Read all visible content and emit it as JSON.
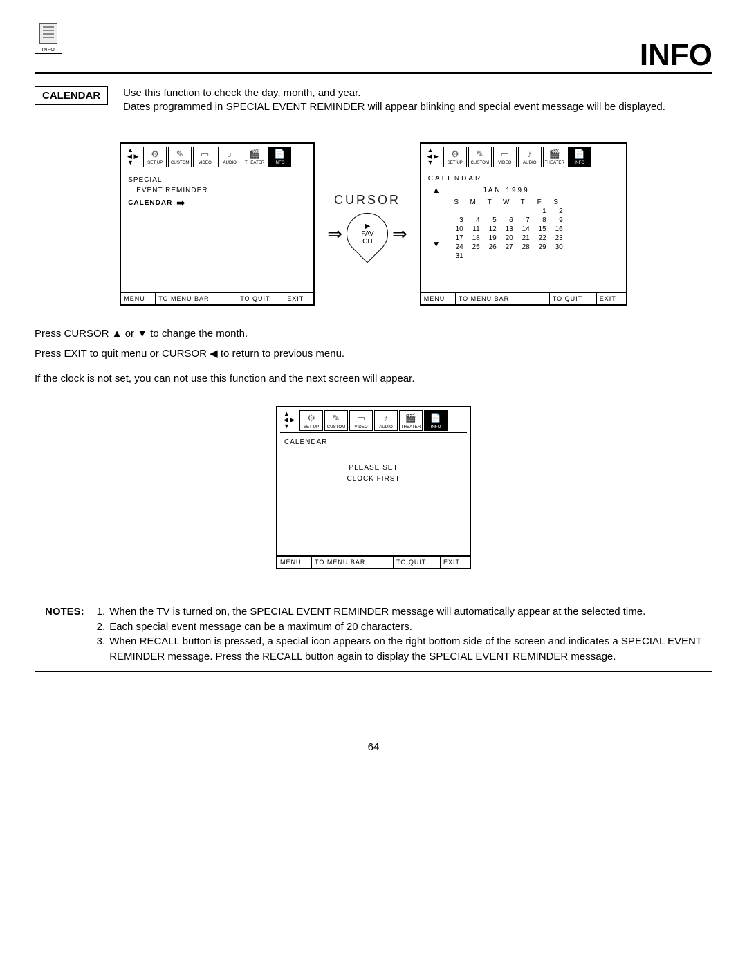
{
  "pageTitle": "INFO",
  "topIconLabel": "INFO",
  "section": {
    "label": "CALENDAR",
    "desc": "Use this function to check the day, month, and year.\nDates programmed in SPECIAL EVENT REMINDER will appear blinking and special event message will be displayed."
  },
  "menuTabs": [
    "SET UP",
    "CUSTOM",
    "VIDEO",
    "AUDIO",
    "THEATER",
    "INFO"
  ],
  "screenLeft": {
    "line1": "SPECIAL",
    "line2": "EVENT REMINDER",
    "selected": "CALENDAR"
  },
  "cursor": {
    "label": "CURSOR",
    "fav": "FAV",
    "ch": "CH"
  },
  "screenRight": {
    "title": "CALENDAR",
    "month": "JAN 1999",
    "dow": [
      "S",
      "M",
      "T",
      "W",
      "T",
      "F",
      "S"
    ],
    "grid": [
      [
        "",
        "",
        "",
        "",
        "",
        "1",
        "2"
      ],
      [
        "3",
        "4",
        "5",
        "6",
        "7",
        "8",
        "9"
      ],
      [
        "10",
        "11",
        "12",
        "13",
        "14",
        "15",
        "16"
      ],
      [
        "17",
        "18",
        "19",
        "20",
        "21",
        "22",
        "23"
      ],
      [
        "24",
        "25",
        "26",
        "27",
        "28",
        "29",
        "30"
      ],
      [
        "31",
        "",
        "",
        "",
        "",
        "",
        ""
      ]
    ]
  },
  "footer": {
    "menu": "MENU",
    "bar": "TO MENU BAR",
    "quit": "TO QUIT",
    "exit": "EXIT"
  },
  "instr1": "Press CURSOR ▲ or ▼ to change the month.",
  "instr2": "Press EXIT to quit menu or CURSOR ◀ to return to previous menu.",
  "instr3": "If the clock is not set, you can not use this function and the next screen will appear.",
  "screenClock": {
    "title": "CALENDAR",
    "msg1": "PLEASE SET",
    "msg2": "CLOCK FIRST"
  },
  "notes": {
    "label": "NOTES:",
    "items": [
      "When the TV is turned on, the SPECIAL EVENT REMINDER message will automatically appear at the selected time.",
      "Each special event message can be a maximum of 20 characters.",
      "When RECALL button is pressed, a special icon appears on the right bottom side of the screen and indicates a SPECIAL EVENT REMINDER message. Press the RECALL button again to display the SPECIAL EVENT REMINDER message."
    ]
  },
  "pageNumber": "64",
  "icons": {
    "setup": "⚙",
    "custom": "✎",
    "video": "▭",
    "audio": "♪",
    "theater": "🎬",
    "info": "📄"
  }
}
